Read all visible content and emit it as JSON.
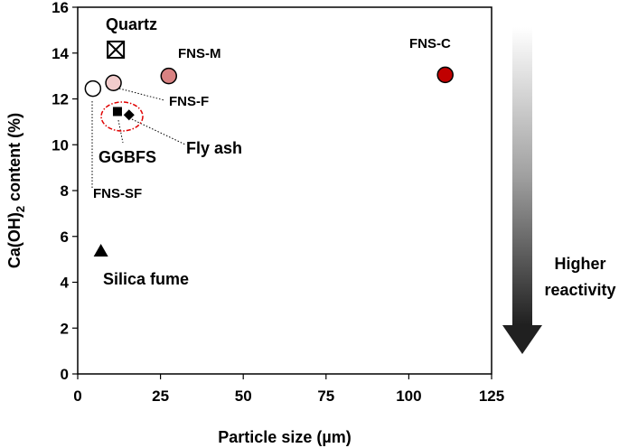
{
  "chart_data": {
    "type": "scatter",
    "xlabel": "Particle size (µm)",
    "ylabel_main": "Ca(OH)",
    "ylabel_sub": "2",
    "ylabel_rest": " content (%)",
    "xlim": [
      0,
      125
    ],
    "ylim": [
      0,
      16
    ],
    "xticks": [
      "0",
      "25",
      "50",
      "75",
      "100",
      "125"
    ],
    "yticks": [
      "0",
      "2",
      "4",
      "6",
      "8",
      "10",
      "12",
      "14",
      "16"
    ],
    "grid": false,
    "points": [
      {
        "label": "Quartz",
        "x": 11.5,
        "y": 14.15,
        "marker": "boxed-x",
        "fill": "#ffffff"
      },
      {
        "label": "FNS-M",
        "x": 27.5,
        "y": 13.0,
        "marker": "circle",
        "fill": "#d98282"
      },
      {
        "label": "FNS-C",
        "x": 111.0,
        "y": 13.05,
        "marker": "circle",
        "fill": "#c00000"
      },
      {
        "label": "FNS-F",
        "x": 10.8,
        "y": 12.7,
        "marker": "circle",
        "fill": "#f2cccc"
      },
      {
        "label": "FNS-SF",
        "x": 4.6,
        "y": 12.45,
        "marker": "circle",
        "fill": "#ffffff"
      },
      {
        "label": "GGBFS",
        "x": 12.0,
        "y": 11.45,
        "marker": "square",
        "fill": "#000000"
      },
      {
        "label": "Fly ash",
        "x": 15.5,
        "y": 11.3,
        "marker": "diamond",
        "fill": "#000000"
      },
      {
        "label": "Silica fume",
        "x": 7.0,
        "y": 5.4,
        "marker": "triangle",
        "fill": "#000000"
      }
    ],
    "side_arrow": {
      "line1": "Higher",
      "line2": "reactivity"
    }
  }
}
